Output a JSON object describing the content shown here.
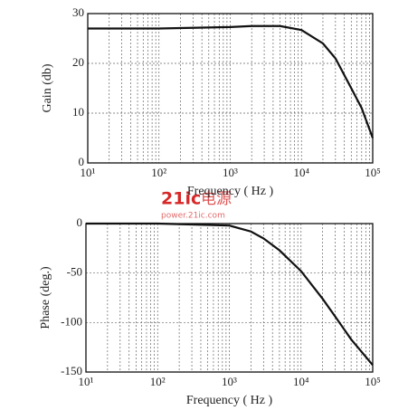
{
  "chart_data": [
    {
      "type": "line",
      "x_label": "Frequency ( Hz )",
      "y_label": "Gain (db)",
      "log_x": true,
      "grid": true,
      "xlim": [
        10,
        100000
      ],
      "xticks": [
        {
          "value": 10,
          "label": "10¹"
        },
        {
          "value": 100,
          "label": "10²"
        },
        {
          "value": 1000,
          "label": "10³"
        },
        {
          "value": 10000,
          "label": "10⁴"
        },
        {
          "value": 100000,
          "label": "10⁵"
        }
      ],
      "ylim": [
        0,
        30
      ],
      "yticks": [
        0,
        10,
        20,
        30
      ],
      "x": [
        10,
        100,
        1000,
        2000,
        5000,
        10000,
        20000,
        30000,
        50000,
        70000,
        100000
      ],
      "series": [
        {
          "color": "#111111",
          "values": [
            27,
            27,
            27.3,
            27.5,
            27.5,
            26.7,
            24,
            21,
            15,
            11,
            5
          ]
        }
      ]
    },
    {
      "type": "line",
      "x_label": "Frequency ( Hz )",
      "y_label": "Phase (deg.)",
      "log_x": true,
      "grid": true,
      "xlim": [
        10,
        100000
      ],
      "xticks": [
        {
          "value": 10,
          "label": "10¹"
        },
        {
          "value": 100,
          "label": "10²"
        },
        {
          "value": 1000,
          "label": "10³"
        },
        {
          "value": 10000,
          "label": "10⁴"
        },
        {
          "value": 100000,
          "label": "10⁵"
        }
      ],
      "ylim": [
        -150,
        0
      ],
      "yticks": [
        -150,
        -100,
        -50,
        0
      ],
      "x": [
        10,
        100,
        1000,
        2000,
        3000,
        5000,
        10000,
        20000,
        30000,
        50000,
        100000
      ],
      "series": [
        {
          "color": "#111111",
          "values": [
            0,
            0,
            -2,
            -8,
            -15,
            -27,
            -48,
            -76,
            -94,
            -117,
            -143
          ]
        }
      ]
    }
  ],
  "watermark": {
    "logo": "21ic",
    "text": "电源",
    "url": "power.21ic.com"
  }
}
